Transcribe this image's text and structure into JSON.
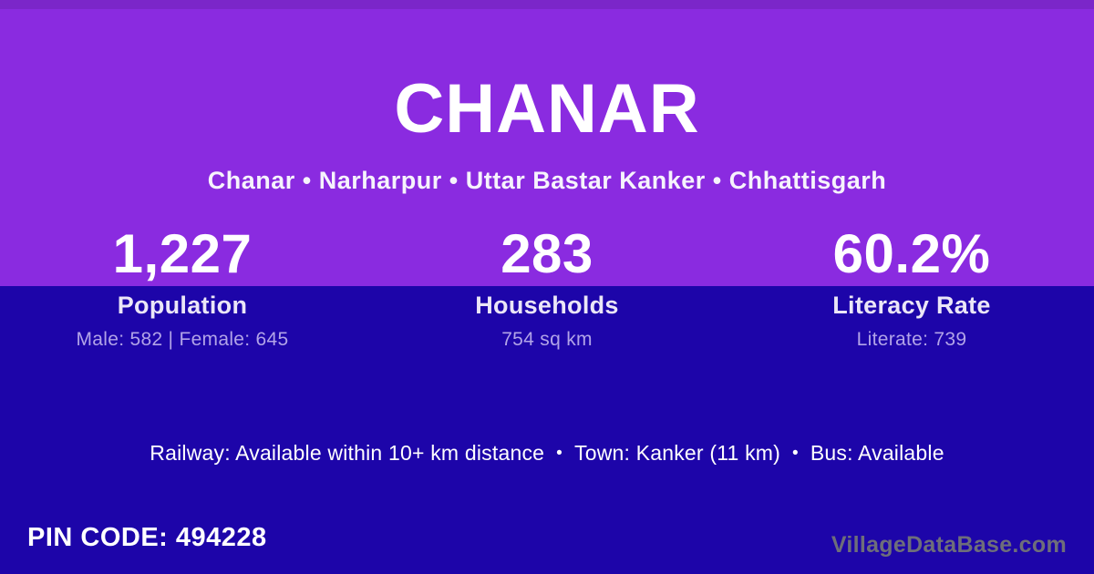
{
  "page": {
    "title": "CHANAR",
    "breadcrumb": "Chanar • Narharpur • Uttar Bastar Kanker • Chhattisgarh"
  },
  "stats": [
    {
      "value": "1,227",
      "label": "Population",
      "detail": "Male: 582 | Female: 645"
    },
    {
      "value": "283",
      "label": "Households",
      "detail": "754 sq km"
    },
    {
      "value": "60.2%",
      "label": "Literacy Rate",
      "detail": "Literate: 739"
    }
  ],
  "transport": {
    "separator": "•",
    "items": [
      "Railway: Available within 10+ km distance",
      "Town: Kanker (11 km)",
      "Bus: Available"
    ]
  },
  "footer": {
    "pin_code": "PIN CODE: 494228",
    "watermark": "VillageDataBase.com"
  },
  "colors": {
    "purple": "#8a2be0",
    "indigo": "#1d05a9",
    "text_white": "#ffffff",
    "text_label": "#ebe6f7",
    "text_detail": "#b2a4e8",
    "text_watermark": "#6e6e7a"
  }
}
